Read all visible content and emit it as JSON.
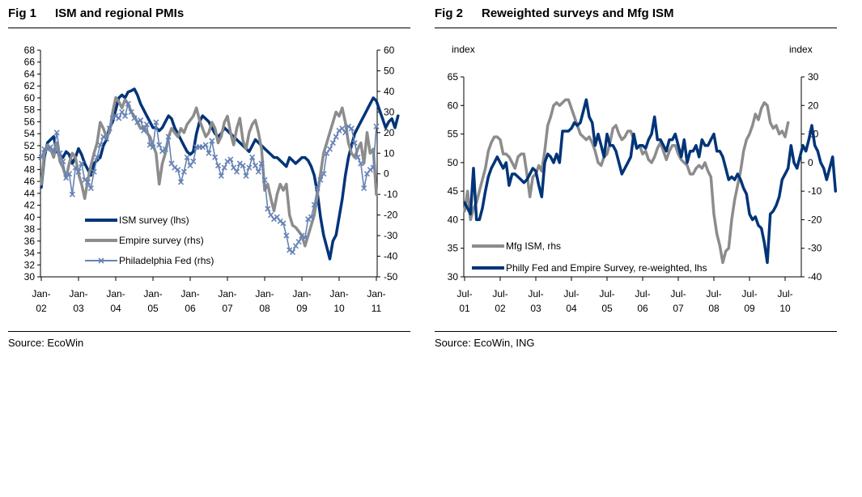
{
  "figures": [
    {
      "number": "Fig 1",
      "title": "ISM and regional PMIs",
      "source": "Source: EcoWin"
    },
    {
      "number": "Fig 2",
      "title": "Reweighted surveys and Mfg ISM",
      "source": "Source: EcoWin, ING"
    }
  ],
  "chart_data": [
    {
      "type": "line",
      "title": "ISM and regional PMIs",
      "x_tick_labels": [
        [
          "Jan-",
          "02"
        ],
        [
          "Jan-",
          "03"
        ],
        [
          "Jan-",
          "04"
        ],
        [
          "Jan-",
          "05"
        ],
        [
          "Jan-",
          "06"
        ],
        [
          "Jan-",
          "07"
        ],
        [
          "Jan-",
          "08"
        ],
        [
          "Jan-",
          "09"
        ],
        [
          "Jan-",
          "10"
        ],
        [
          "Jan-",
          "11"
        ]
      ],
      "x_start": "2002-01",
      "x_frequency": "monthly",
      "left_axis": {
        "label": "",
        "ylim": [
          30,
          68
        ],
        "ticks": [
          30,
          32,
          34,
          36,
          38,
          40,
          42,
          44,
          46,
          48,
          50,
          52,
          54,
          56,
          58,
          60,
          62,
          64,
          66,
          68
        ]
      },
      "right_axis": {
        "label": "",
        "ylim": [
          -50,
          60
        ],
        "ticks": [
          -50,
          -40,
          -30,
          -20,
          -10,
          0,
          10,
          20,
          30,
          40,
          50,
          60
        ]
      },
      "legend_position": "bottom-left",
      "grid": false,
      "series": [
        {
          "name": "ISM survey (lhs)",
          "axis": "left",
          "color": "#003478",
          "marker": "none",
          "values": [
            45,
            50,
            52.5,
            53,
            53.5,
            51,
            50.5,
            50,
            51,
            50.5,
            49,
            50,
            51.5,
            50.5,
            49,
            48,
            47,
            49,
            49.5,
            50,
            52,
            53,
            55,
            56,
            58,
            60,
            60.5,
            60,
            61,
            61.2,
            61.5,
            60.5,
            59,
            58,
            57,
            56,
            55,
            55,
            54.5,
            55,
            56,
            57,
            56.5,
            55,
            54,
            53,
            52,
            51,
            50.5,
            51,
            54,
            56,
            57,
            56.5,
            56,
            55,
            54,
            53.5,
            54,
            55,
            54.5,
            54,
            53.5,
            53,
            52.5,
            52,
            51.5,
            51,
            52,
            53,
            52.5,
            52,
            51.5,
            51,
            50.5,
            50,
            50,
            49.5,
            49,
            48.5,
            50,
            49.5,
            49,
            49.5,
            50,
            50,
            49.5,
            48.5,
            47,
            44,
            40,
            37,
            35,
            33,
            36,
            37,
            40,
            43,
            47,
            50,
            52,
            54,
            55,
            56,
            57,
            58,
            59,
            60,
            59.5,
            58,
            56.5,
            55,
            56,
            56.5,
            55,
            57
          ]
        },
        {
          "name": "Empire survey (rhs)",
          "axis": "right",
          "color": "#8c8c8c",
          "marker": "none",
          "values": [
            -5,
            10,
            14,
            12,
            8,
            15,
            6,
            3,
            -2,
            5,
            10,
            8,
            0,
            -5,
            -12,
            -3,
            4,
            10,
            15,
            25,
            22,
            18,
            20,
            30,
            37,
            35,
            32,
            36,
            34,
            30,
            28,
            25,
            22,
            23,
            20,
            18,
            14,
            10,
            -5,
            5,
            10,
            18,
            22,
            20,
            18,
            22,
            20,
            24,
            26,
            28,
            32,
            26,
            22,
            18,
            20,
            25,
            22,
            15,
            18,
            25,
            28,
            20,
            14,
            22,
            27,
            16,
            12,
            20,
            24,
            26,
            20,
            12,
            -8,
            -5,
            -12,
            -18,
            -10,
            -5,
            -8,
            -5,
            -20,
            -25,
            -26,
            -28,
            -30,
            -35,
            -30,
            -25,
            -20,
            -10,
            0,
            10,
            15,
            20,
            25,
            30,
            28,
            32,
            25,
            15,
            10,
            8,
            12,
            15,
            5,
            20,
            10,
            12,
            -10
          ]
        },
        {
          "name": "Philadelphia Fed (rhs)",
          "axis": "right",
          "color": "#6683b5",
          "marker": "x",
          "values": [
            8,
            12,
            12,
            13,
            11,
            20,
            10,
            6,
            -2,
            0,
            -10,
            3,
            1,
            5,
            -3,
            -4,
            -7,
            1,
            8,
            14,
            18,
            17,
            22,
            27,
            28,
            27,
            30,
            28,
            34,
            30,
            27,
            25,
            26,
            21,
            24,
            14,
            13,
            25,
            14,
            11,
            12,
            18,
            5,
            3,
            2,
            -4,
            1,
            8,
            4,
            6,
            13,
            13,
            13,
            14,
            10,
            16,
            8,
            4,
            -1,
            3,
            6,
            7,
            3,
            1,
            5,
            4,
            -1,
            3,
            8,
            4,
            1,
            5,
            -3,
            -17,
            -20,
            -22,
            -21,
            -23,
            -24,
            -30,
            -37,
            -38,
            -35,
            -33,
            -30,
            -31,
            -22,
            -21,
            -15,
            -7,
            -3,
            0,
            10,
            12,
            15,
            18,
            21,
            22,
            20,
            23,
            22,
            15,
            8,
            5,
            -7,
            0,
            2,
            3,
            23
          ]
        }
      ]
    },
    {
      "type": "line",
      "title": "Reweighted surveys and Mfg ISM",
      "x_tick_labels": [
        [
          "Jul-",
          "01"
        ],
        [
          "Jul-",
          "02"
        ],
        [
          "Jul-",
          "03"
        ],
        [
          "Jul-",
          "04"
        ],
        [
          "Jul-",
          "05"
        ],
        [
          "Jul-",
          "06"
        ],
        [
          "Jul-",
          "07"
        ],
        [
          "Jul-",
          "08"
        ],
        [
          "Jul-",
          "09"
        ],
        [
          "Jul-",
          "10"
        ]
      ],
      "x_start": "2001-07",
      "x_frequency": "monthly",
      "left_axis": {
        "label": "index",
        "ylim": [
          30,
          65
        ],
        "ticks": [
          30,
          35,
          40,
          45,
          50,
          55,
          60,
          65
        ]
      },
      "right_axis": {
        "label": "index",
        "ylim": [
          -40,
          30
        ],
        "ticks": [
          -40,
          -30,
          -20,
          -10,
          0,
          10,
          20,
          30
        ]
      },
      "legend_position": "bottom-left",
      "grid": false,
      "series": [
        {
          "name": "Mfg ISM, rhs",
          "axis": "right",
          "color": "#8c8c8c",
          "values": [
            -17,
            -10,
            -20,
            -16,
            -14,
            -10,
            -6,
            -2,
            4,
            7,
            9,
            9,
            8,
            3,
            3,
            2,
            0,
            -2,
            2,
            3,
            3,
            -4,
            -12,
            -5,
            -4,
            -1,
            -3,
            4,
            13,
            16,
            20,
            21,
            20,
            21,
            22,
            22,
            19,
            16,
            13,
            10,
            9,
            8,
            9,
            7,
            4,
            0,
            -1,
            2,
            3,
            7,
            12,
            13,
            10,
            8,
            9,
            11,
            11,
            8,
            5,
            6,
            3,
            4,
            1,
            0,
            2,
            5,
            7,
            4,
            1,
            4,
            6,
            6,
            3,
            1,
            0,
            -1,
            -4,
            -4,
            -2,
            -1,
            -2,
            0,
            -3,
            -5,
            -18,
            -25,
            -29,
            -35,
            -31,
            -30,
            -20,
            -13,
            -8,
            -3,
            4,
            8,
            10,
            13,
            17,
            15,
            19,
            21,
            20,
            14,
            12,
            13,
            10,
            11,
            9,
            14
          ]
        },
        {
          "name": "Philly Fed and Empire Survey, re-weighted, lhs",
          "axis": "left",
          "color": "#003478",
          "values": [
            43,
            42,
            41,
            49,
            40,
            40,
            42,
            45,
            47.5,
            49,
            50,
            51,
            50,
            49,
            50,
            46,
            48,
            48,
            47.5,
            47,
            46.5,
            47,
            48,
            49,
            48.5,
            46,
            44,
            50,
            51.5,
            51,
            50,
            51.5,
            50,
            55.5,
            55.5,
            55.5,
            56,
            57,
            56.5,
            57,
            59,
            61,
            58,
            57,
            53,
            55,
            53,
            51,
            55,
            53,
            53,
            52,
            50,
            48,
            49,
            50,
            51,
            55,
            52.5,
            53,
            53,
            52.5,
            54,
            55,
            58,
            54,
            54,
            53,
            52,
            54,
            54,
            55,
            53,
            51,
            54,
            50,
            52,
            52,
            53,
            51,
            54,
            53,
            53,
            54,
            55,
            52,
            52,
            51,
            49,
            47,
            47.5,
            47,
            48,
            47,
            45.5,
            44.5,
            41,
            40,
            40.5,
            39,
            38.5,
            36,
            32.5,
            41,
            41.5,
            42.5,
            44,
            47,
            48,
            49,
            53,
            50,
            49,
            51,
            53,
            52,
            54,
            56.5,
            53,
            52,
            50,
            49,
            47,
            49,
            51,
            45
          ]
        }
      ]
    }
  ]
}
